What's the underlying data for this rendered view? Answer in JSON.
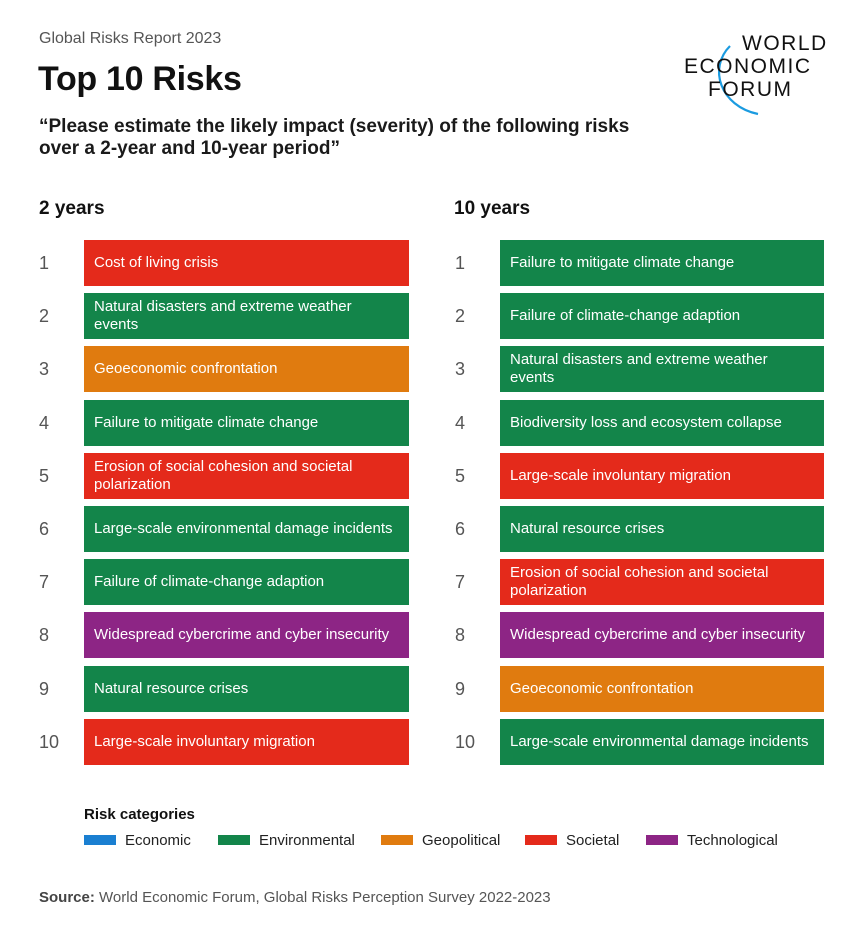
{
  "header": {
    "report_label": "Global Risks Report 2023",
    "title": "Top 10 Risks",
    "subtitle": "“Please estimate the likely impact (severity) of the following risks over a 2-year and 10-year period”"
  },
  "logo": {
    "lines": [
      "WORLD",
      "ECONOMIC",
      "FORUM"
    ],
    "icon": "wef-arc-logo"
  },
  "colors": {
    "Economic": "#1a7fd1",
    "Environmental": "#13854a",
    "Geopolitical": "#e07b0f",
    "Societal": "#e42a1b",
    "Technological": "#8d2585"
  },
  "chart_data": [
    {
      "type": "table",
      "title": "2 years",
      "ranks": [
        "1",
        "2",
        "3",
        "4",
        "5",
        "6",
        "7",
        "8",
        "9",
        "10"
      ],
      "items": [
        {
          "label": "Cost of living crisis",
          "category": "Societal"
        },
        {
          "label": "Natural disasters and extreme weather events",
          "category": "Environmental"
        },
        {
          "label": "Geoeconomic confrontation",
          "category": "Geopolitical"
        },
        {
          "label": "Failure to mitigate climate change",
          "category": "Environmental"
        },
        {
          "label": "Erosion of social cohesion and societal polarization",
          "category": "Societal"
        },
        {
          "label": "Large-scale environmental damage incidents",
          "category": "Environmental"
        },
        {
          "label": "Failure of climate-change adaption",
          "category": "Environmental"
        },
        {
          "label": "Widespread cybercrime and cyber insecurity",
          "category": "Technological"
        },
        {
          "label": "Natural resource crises",
          "category": "Environmental"
        },
        {
          "label": "Large-scale involuntary migration",
          "category": "Societal"
        }
      ]
    },
    {
      "type": "table",
      "title": "10 years",
      "ranks": [
        "1",
        "2",
        "3",
        "4",
        "5",
        "6",
        "7",
        "8",
        "9",
        "10"
      ],
      "items": [
        {
          "label": "Failure to mitigate climate change",
          "category": "Environmental"
        },
        {
          "label": "Failure of climate-change adaption",
          "category": "Environmental"
        },
        {
          "label": "Natural disasters and extreme weather events",
          "category": "Environmental"
        },
        {
          "label": "Biodiversity loss and ecosystem collapse",
          "category": "Environmental"
        },
        {
          "label": "Large-scale involuntary migration",
          "category": "Societal"
        },
        {
          "label": "Natural resource crises",
          "category": "Environmental"
        },
        {
          "label": "Erosion of social cohesion and societal polarization",
          "category": "Societal"
        },
        {
          "label": "Widespread cybercrime and cyber insecurity",
          "category": "Technological"
        },
        {
          "label": "Geoeconomic confrontation",
          "category": "Geopolitical"
        },
        {
          "label": "Large-scale environmental damage incidents",
          "category": "Environmental"
        }
      ]
    }
  ],
  "legend": {
    "title": "Risk categories",
    "items": [
      {
        "label": "Economic",
        "color": "#1a7fd1"
      },
      {
        "label": "Environmental",
        "color": "#13854a"
      },
      {
        "label": "Geopolitical",
        "color": "#e07b0f"
      },
      {
        "label": "Societal",
        "color": "#e42a1b"
      },
      {
        "label": "Technological",
        "color": "#8d2585"
      }
    ]
  },
  "source": {
    "prefix": "Source:",
    "text": "World Economic Forum, Global Risks Perception Survey 2022-2023"
  }
}
